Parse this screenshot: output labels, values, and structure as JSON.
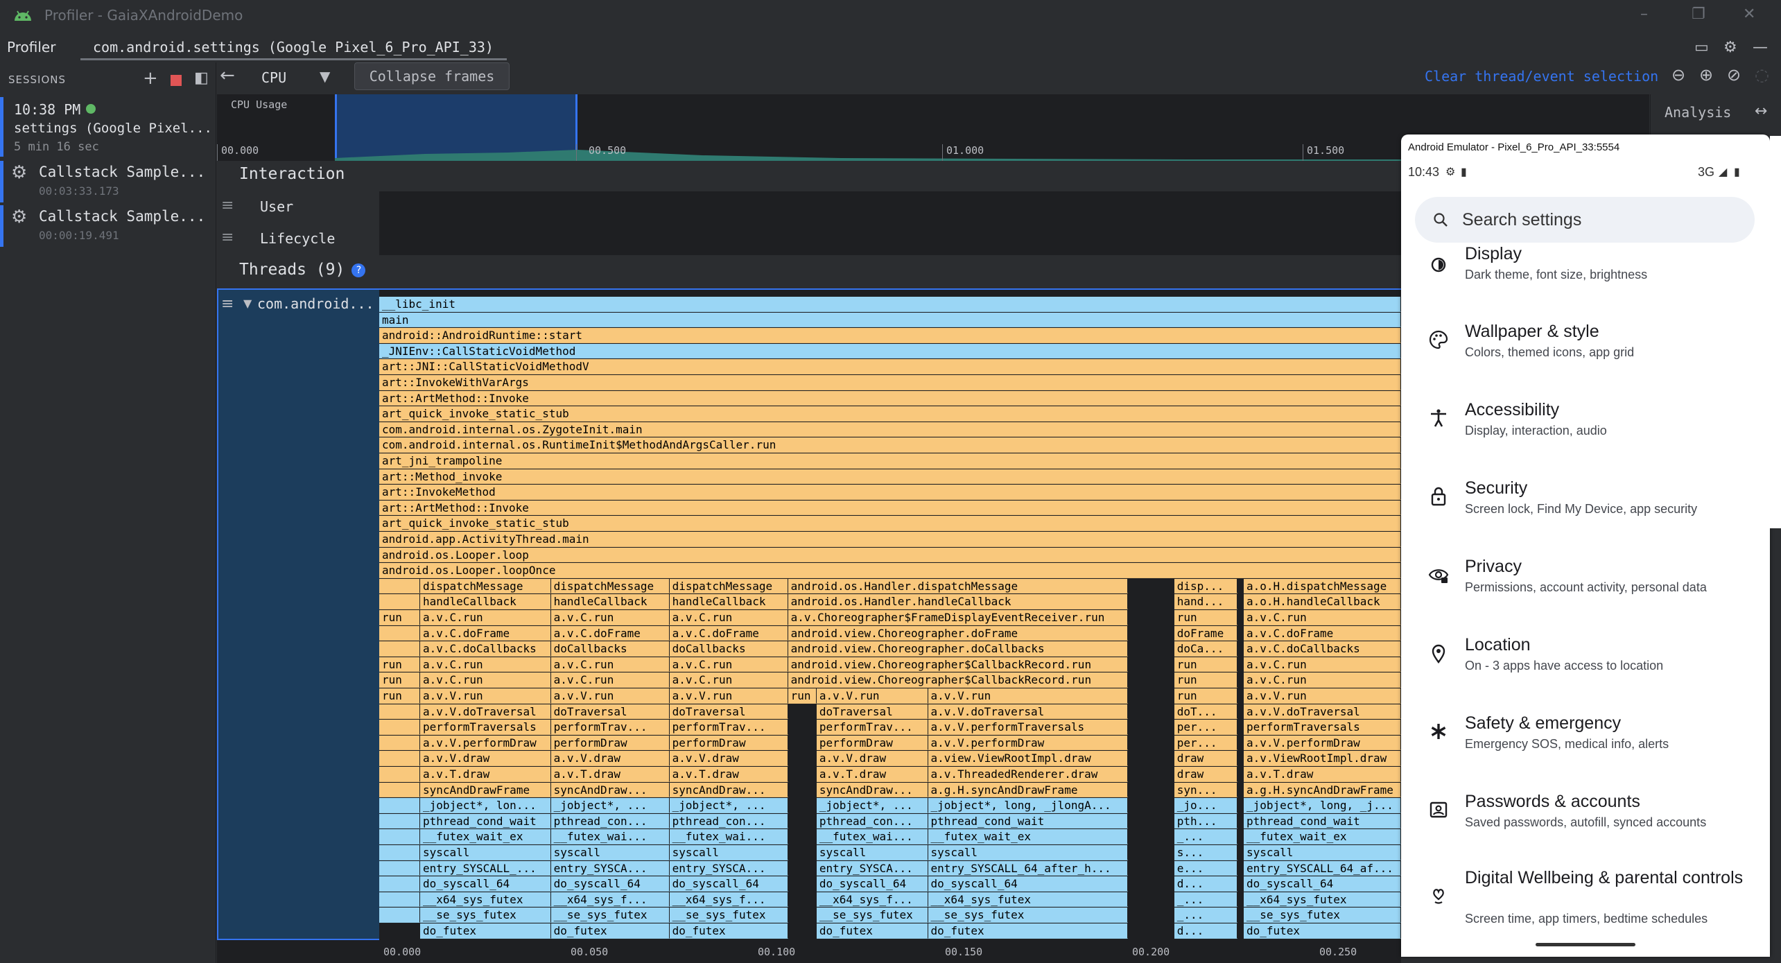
{
  "window": {
    "title": "Profiler - GaiaXAndroidDemo"
  },
  "tabbar": {
    "profiler_tab": "Profiler",
    "session_tab": "com.android.settings (Google Pixel_6_Pro_API_33)"
  },
  "sessions": {
    "header": "SESSIONS",
    "current": {
      "time": "10:38 PM",
      "name": "settings (Google Pixel...",
      "duration": "5 min 16 sec"
    },
    "items": [
      {
        "name": "Callstack Sample...",
        "time": "00:03:33.173"
      },
      {
        "name": "Callstack Sample...",
        "time": "00:00:19.491"
      }
    ]
  },
  "toolbar": {
    "cpu_label": "CPU",
    "collapse_label": "Collapse frames",
    "clear_label": "Clear thread/event selection"
  },
  "cpu_usage": {
    "label": "CPU Usage",
    "ticks": [
      "00.000",
      "00.500",
      "01.000",
      "01.500"
    ]
  },
  "analysis": {
    "label": "Analysis"
  },
  "interaction": {
    "label": "Interaction",
    "rows": [
      "User",
      "Lifecycle"
    ]
  },
  "threads": {
    "label": "Threads (9)",
    "thread_name": "com.android..."
  },
  "flame_axis": [
    "00.000",
    "00.050",
    "00.100",
    "00.150",
    "00.200",
    "00.250"
  ],
  "flame": {
    "full_frames": [
      {
        "label": "__libc_init",
        "c": "b"
      },
      {
        "label": "main",
        "c": "b"
      },
      {
        "label": "android::AndroidRuntime::start",
        "c": "o"
      },
      {
        "label": "_JNIEnv::CallStaticVoidMethod",
        "c": "b"
      },
      {
        "label": "art::JNI::CallStaticVoidMethodV",
        "c": "o"
      },
      {
        "label": "art::InvokeWithVarArgs",
        "c": "o"
      },
      {
        "label": "art::ArtMethod::Invoke",
        "c": "o"
      },
      {
        "label": "art_quick_invoke_static_stub",
        "c": "o"
      },
      {
        "label": "com.android.internal.os.ZygoteInit.main",
        "c": "o"
      },
      {
        "label": "com.android.internal.os.RuntimeInit$MethodAndArgsCaller.run",
        "c": "o"
      },
      {
        "label": "art_jni_trampoline",
        "c": "o"
      },
      {
        "label": "art::Method_invoke",
        "c": "o"
      },
      {
        "label": "art::InvokeMethod",
        "c": "o"
      },
      {
        "label": "art::ArtMethod::Invoke",
        "c": "o"
      },
      {
        "label": "art_quick_invoke_static_stub",
        "c": "o"
      },
      {
        "label": "android.app.ActivityThread.main",
        "c": "o"
      },
      {
        "label": "android.os.Looper.loop",
        "c": "o"
      },
      {
        "label": "android.os.Looper.loopOnce",
        "c": "o"
      }
    ],
    "columns": [
      {
        "x0": 0.0,
        "x1": 0.04,
        "rows": [
          "",
          "",
          "run",
          "",
          "",
          "run",
          "run",
          "run",
          "",
          "",
          "",
          "",
          "",
          "",
          "",
          "",
          "",
          "",
          "",
          "",
          "",
          ""
        ]
      },
      {
        "x0": 0.04,
        "x1": 0.168,
        "rows": [
          "dispatchMessage",
          "handleCallback",
          "a.v.C.run",
          "a.v.C.doFrame",
          "a.v.C.doCallbacks",
          "a.v.C.run",
          "a.v.C.run",
          "a.v.V.run",
          "a.v.V.doTraversal",
          "performTraversals",
          "a.v.V.performDraw",
          "a.v.V.draw",
          "a.v.T.draw",
          "syncAndDrawFrame",
          "_jobject*, lon...",
          "pthread_cond_wait",
          "__futex_wait_ex",
          "syscall",
          "entry_SYSCALL_...",
          "do_syscall_64",
          "__x64_sys_futex",
          "__se_sys_futex",
          "do_futex"
        ]
      },
      {
        "x0": 0.168,
        "x1": 0.284,
        "rows": [
          "dispatchMessage",
          "handleCallback",
          "a.v.C.run",
          "a.v.C.doFrame",
          "doCallbacks",
          "a.v.C.run",
          "a.v.C.run",
          "a.v.V.run",
          "doTraversal",
          "performTrav...",
          "performDraw",
          "a.v.V.draw",
          "a.v.T.draw",
          "syncAndDraw...",
          "_jobject*, ...",
          "pthread_con...",
          "__futex_wai...",
          "syscall",
          "entry_SYSCA...",
          "do_syscall_64",
          "__x64_sys_f...",
          "__se_sys_futex",
          "do_futex"
        ]
      },
      {
        "x0": 0.284,
        "x1": 0.4,
        "rows": [
          "dispatchMessage",
          "handleCallback",
          "a.v.C.run",
          "a.v.C.doFrame",
          "doCallbacks",
          "a.v.C.run",
          "a.v.C.run",
          "a.v.V.run",
          "doTraversal",
          "performTrav...",
          "performDraw",
          "a.v.V.draw",
          "a.v.T.draw",
          "syncAndDraw...",
          "_jobject*, ...",
          "pthread_con...",
          "__futex_wai...",
          "syscall",
          "entry_SYSCA...",
          "do_syscall_64",
          "__x64_sys_f...",
          "__se_sys_futex",
          "do_futex"
        ]
      },
      {
        "x0": 0.4,
        "x1": 0.733,
        "rows": [
          "android.os.Handler.dispatchMessage",
          "android.os.Handler.handleCallback",
          "a.v.Choreographer$FrameDisplayEventReceiver.run",
          "android.view.Choreographer.doFrame",
          "android.view.Choreographer.doCallbacks",
          "android.view.Choreographer$CallbackRecord.run",
          "android.view.Choreographer$CallbackRecord.run"
        ]
      },
      {
        "x0": 0.4,
        "x1": 0.428,
        "start": 7,
        "rows": [
          "run"
        ]
      },
      {
        "x0": 0.428,
        "x1": 0.537,
        "start": 7,
        "rows": [
          "a.v.V.run",
          "doTraversal",
          "performTrav...",
          "performDraw",
          "a.v.V.draw",
          "a.v.T.draw",
          "syncAndDraw...",
          "_jobject*, ...",
          "pthread_con...",
          "__futex_wai...",
          "syscall",
          "entry_SYSCA...",
          "do_syscall_64",
          "__x64_sys_f...",
          "__se_sys_futex",
          "do_futex"
        ]
      },
      {
        "x0": 0.537,
        "x1": 0.733,
        "start": 7,
        "rows": [
          "a.v.V.run",
          "a.v.V.doTraversal",
          "a.v.V.performTraversals",
          "a.v.V.performDraw",
          "a.view.ViewRootImpl.draw",
          "a.v.ThreadedRenderer.draw",
          "a.g.H.syncAndDrawFrame",
          "_jobject*, long, _jlongA...",
          "pthread_cond_wait",
          "__futex_wait_ex",
          "syscall",
          "entry_SYSCALL_64_after_h...",
          "do_syscall_64",
          "__x64_sys_futex",
          "__se_sys_futex",
          "do_futex"
        ]
      },
      {
        "x0": 0.778,
        "x1": 0.84,
        "rows": [
          "disp...",
          "hand...",
          "run",
          "doFrame",
          "doCa...",
          "run",
          "run",
          "run",
          "doT...",
          "per...",
          "per...",
          "draw",
          "draw",
          "syn...",
          "_jo...",
          "pth...",
          "_...",
          "s...",
          "e...",
          "d...",
          "_...",
          "_...",
          "d..."
        ]
      },
      {
        "x0": 0.846,
        "x1": 1.0,
        "rows": [
          "a.o.H.dispatchMessage",
          "a.o.H.handleCallback",
          "a.v.C.run",
          "a.v.C.doFrame",
          "a.v.C.doCallbacks",
          "a.v.C.run",
          "a.v.C.run",
          "a.v.V.run",
          "a.v.V.doTraversal",
          "performTraversals",
          "a.v.V.performDraw",
          "a.v.ViewRootImpl.draw",
          "a.v.T.draw",
          "a.g.H.syncAndDrawFrame",
          "_jobject*, long, _j...",
          "pthread_cond_wait",
          "__futex_wait_ex",
          "syscall",
          "entry_SYSCALL_64_af...",
          "do_syscall_64",
          "__x64_sys_futex",
          "__se_sys_futex",
          "do_futex"
        ]
      }
    ]
  },
  "emulator": {
    "title": "Android Emulator - Pixel_6_Pro_API_33:5554",
    "clock": "10:43",
    "network": "3G",
    "search_placeholder": "Search settings",
    "items": [
      {
        "title": "Display",
        "subtitle": "Dark theme, font size, brightness",
        "icon": "display-icon"
      },
      {
        "title": "Wallpaper & style",
        "subtitle": "Colors, themed icons, app grid",
        "icon": "palette-icon"
      },
      {
        "title": "Accessibility",
        "subtitle": "Display, interaction, audio",
        "icon": "accessibility-icon"
      },
      {
        "title": "Security",
        "subtitle": "Screen lock, Find My Device, app security",
        "icon": "lock-icon"
      },
      {
        "title": "Privacy",
        "subtitle": "Permissions, account activity, personal data",
        "icon": "privacy-eye-icon"
      },
      {
        "title": "Location",
        "subtitle": "On - 3 apps have access to location",
        "icon": "location-pin-icon"
      },
      {
        "title": "Safety & emergency",
        "subtitle": "Emergency SOS, medical info, alerts",
        "icon": "asterisk-icon"
      },
      {
        "title": "Passwords & accounts",
        "subtitle": "Saved passwords, autofill, synced accounts",
        "icon": "account-box-icon"
      },
      {
        "title": "Digital Wellbeing & parental controls",
        "subtitle": "Screen time, app timers, bedtime schedules",
        "icon": "wellbeing-icon"
      }
    ]
  }
}
